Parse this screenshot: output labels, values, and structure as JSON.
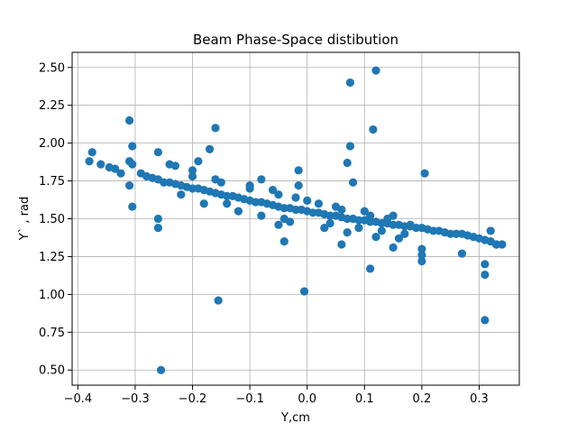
{
  "chart_data": {
    "type": "scatter",
    "title": "Beam Phase-Space distibution",
    "xlabel": "Y,cm",
    "ylabel": "Y` , rad",
    "xlim": [
      -0.41,
      0.37
    ],
    "ylim": [
      0.4,
      2.6
    ],
    "xticks": [
      -0.4,
      -0.3,
      -0.2,
      -0.1,
      0.0,
      0.1,
      0.2,
      0.3
    ],
    "xtick_labels": [
      "−0.4",
      "−0.3",
      "−0.2",
      "−0.1",
      "0.0",
      "0.1",
      "0.2",
      "0.3"
    ],
    "yticks": [
      0.5,
      0.75,
      1.0,
      1.25,
      1.5,
      1.75,
      2.0,
      2.25,
      2.5
    ],
    "ytick_labels": [
      "0.50",
      "0.75",
      "1.00",
      "1.25",
      "1.50",
      "1.75",
      "2.00",
      "2.25",
      "2.50"
    ],
    "grid": true,
    "marker_color": "#1f77b4",
    "series": [
      {
        "x": [
          -0.38,
          -0.375,
          -0.36,
          -0.345,
          -0.335,
          -0.325,
          -0.31,
          -0.305,
          -0.31,
          -0.29,
          -0.28,
          -0.27,
          -0.26,
          -0.25,
          -0.24,
          -0.23,
          -0.22,
          -0.21,
          -0.2,
          -0.19,
          -0.18,
          -0.17,
          -0.16,
          -0.15,
          -0.14,
          -0.13,
          -0.12,
          -0.11,
          -0.1,
          -0.09,
          -0.08,
          -0.07,
          -0.06,
          -0.05,
          -0.04,
          -0.03,
          -0.02,
          -0.01,
          0.0,
          0.01,
          0.02,
          0.03,
          0.04,
          0.05,
          0.06,
          0.07,
          0.08,
          0.09,
          0.1,
          0.11,
          0.12,
          0.13,
          0.14,
          0.15,
          0.16,
          0.17,
          0.18,
          0.19,
          0.2,
          0.21,
          0.22,
          0.23,
          0.24,
          0.25,
          0.26,
          0.27,
          0.28,
          0.29,
          0.3,
          0.31,
          0.32,
          0.33,
          0.34,
          -0.2,
          -0.15,
          -0.1,
          -0.05,
          0.0,
          0.05,
          0.1,
          0.15,
          -0.18,
          -0.12,
          -0.08,
          -0.03,
          0.03,
          0.07,
          0.12,
          0.16,
          -0.16,
          -0.1,
          -0.06,
          -0.02,
          0.02,
          0.06,
          0.11,
          0.14,
          0.18,
          -0.22,
          -0.14,
          -0.04,
          0.04,
          0.09,
          0.13,
          0.17,
          -0.26,
          -0.24,
          -0.2,
          -0.19,
          -0.17,
          -0.16,
          -0.05,
          -0.04,
          -0.015,
          -0.015,
          0.075,
          0.075,
          0.07,
          0.08,
          0.12,
          0.115,
          0.205,
          0.2,
          0.2,
          0.2,
          0.11,
          0.27,
          0.31,
          0.31,
          0.31,
          0.32,
          0.33,
          -0.255,
          -0.155,
          -0.005,
          -0.31,
          -0.305,
          -0.305,
          -0.26,
          -0.26,
          -0.23,
          -0.08,
          0.06,
          0.15
        ],
        "y": [
          1.88,
          1.94,
          1.86,
          1.84,
          1.83,
          1.8,
          1.88,
          1.86,
          1.72,
          1.8,
          1.78,
          1.77,
          1.76,
          1.74,
          1.74,
          1.73,
          1.72,
          1.71,
          1.7,
          1.7,
          1.69,
          1.68,
          1.67,
          1.66,
          1.65,
          1.65,
          1.64,
          1.63,
          1.62,
          1.61,
          1.61,
          1.6,
          1.59,
          1.58,
          1.57,
          1.57,
          1.56,
          1.56,
          1.55,
          1.54,
          1.54,
          1.53,
          1.52,
          1.52,
          1.51,
          1.5,
          1.5,
          1.49,
          1.49,
          1.48,
          1.48,
          1.47,
          1.47,
          1.46,
          1.46,
          1.45,
          1.45,
          1.44,
          1.44,
          1.43,
          1.42,
          1.42,
          1.41,
          1.4,
          1.4,
          1.4,
          1.39,
          1.38,
          1.37,
          1.36,
          1.35,
          1.33,
          1.33,
          1.78,
          1.74,
          1.7,
          1.66,
          1.62,
          1.58,
          1.55,
          1.52,
          1.6,
          1.55,
          1.52,
          1.48,
          1.44,
          1.41,
          1.38,
          1.37,
          1.76,
          1.72,
          1.69,
          1.64,
          1.6,
          1.56,
          1.52,
          1.5,
          1.46,
          1.66,
          1.6,
          1.5,
          1.47,
          1.44,
          1.42,
          1.4,
          1.94,
          1.86,
          1.82,
          1.88,
          1.96,
          2.1,
          1.46,
          1.35,
          1.82,
          1.72,
          2.4,
          1.98,
          1.87,
          1.74,
          2.48,
          2.09,
          1.8,
          1.3,
          1.22,
          1.26,
          1.17,
          1.27,
          0.83,
          1.13,
          1.2,
          1.42,
          1.33,
          0.5,
          0.96,
          1.02,
          2.15,
          1.98,
          1.58,
          1.44,
          1.5,
          1.85,
          1.76,
          1.33,
          1.31
        ]
      }
    ]
  }
}
